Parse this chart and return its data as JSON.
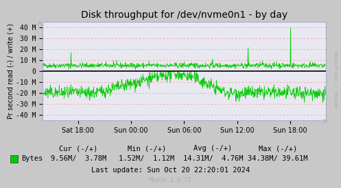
{
  "title": "Disk throughput for /dev/nvme0n1 - by day",
  "ylabel": "Pr second read (-) / write (+)",
  "background_color": "#c8c8c8",
  "plot_bg_color": "#e8e8f0",
  "grid_color": "#ff9999",
  "ylim": [
    -45000000,
    45000000
  ],
  "yticks": [
    -40000000,
    -30000000,
    -20000000,
    -10000000,
    0,
    10000000,
    20000000,
    30000000,
    40000000
  ],
  "ytick_labels": [
    "-40 M",
    "-30 M",
    "-20 M",
    "-10 M",
    "0",
    "10 M",
    "20 M",
    "30 M",
    "40 M"
  ],
  "xtick_labels": [
    "Sat 18:00",
    "Sun 00:00",
    "Sun 06:00",
    "Sun 12:00",
    "Sun 18:00"
  ],
  "legend_label": "Bytes",
  "legend_color": "#00cc00",
  "cur_neg": "9.56M",
  "cur_pos": "3.78M",
  "min_neg": "1.52M",
  "min_pos": "1.12M",
  "avg_neg": "14.31M",
  "avg_pos": "4.76M",
  "max_neg": "34.38M",
  "max_pos": "39.61M",
  "last_update": "Last update: Sun Oct 20 22:20:01 2024",
  "munin_version": "Munin 2.0.73",
  "rrdtool_label": "RRDTOOL / TOBI OETIKER",
  "line_color": "#00cc00",
  "zero_line_color": "#000000",
  "title_fontsize": 10,
  "axis_label_fontsize": 7,
  "tick_fontsize": 7,
  "footer_fontsize": 7.5
}
